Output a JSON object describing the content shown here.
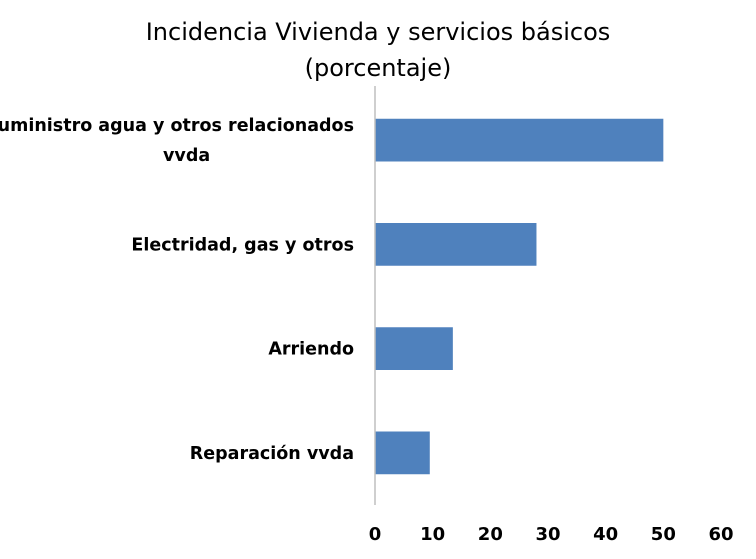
{
  "chart_data": {
    "type": "bar",
    "orientation": "horizontal",
    "title": "Incidencia Vivienda y servicios básicos",
    "subtitle": "(porcentaje)",
    "categories": [
      [
        "Suministro agua y otros relacionados",
        "vvda"
      ],
      [
        "Electridad, gas y otros"
      ],
      [
        "Arriendo"
      ],
      [
        "Reparación vvda"
      ]
    ],
    "values": [
      50,
      28,
      13.5,
      9.5
    ],
    "xlim": [
      0,
      60
    ],
    "xticks": [
      "0",
      "10",
      "20",
      "30",
      "40",
      "50",
      "60"
    ],
    "grid": false,
    "legend": "none",
    "colors": {
      "bar": "#4f81bd",
      "axis": "#bfbfbf"
    }
  }
}
